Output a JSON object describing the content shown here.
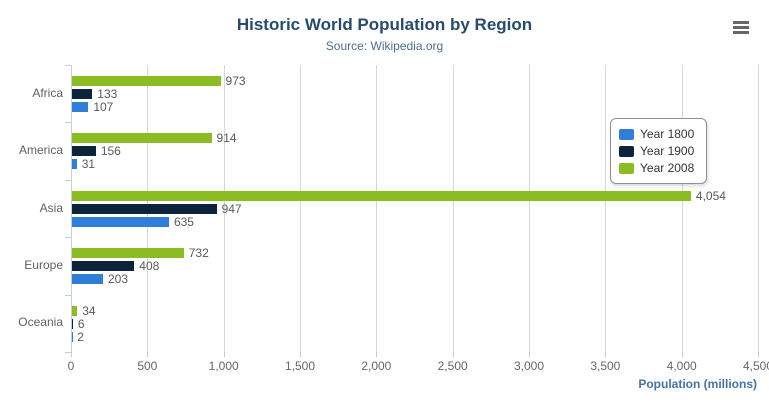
{
  "chart_data": {
    "type": "bar",
    "title": "Historic World Population by Region",
    "subtitle": "Source: Wikipedia.org",
    "categories": [
      "Africa",
      "America",
      "Asia",
      "Europe",
      "Oceania"
    ],
    "series": [
      {
        "name": "Year 1800",
        "color": "#2f7ed8",
        "values": [
          107,
          31,
          635,
          203,
          2
        ]
      },
      {
        "name": "Year 1900",
        "color": "#0d233a",
        "values": [
          133,
          156,
          947,
          408,
          6
        ]
      },
      {
        "name": "Year 2008",
        "color": "#8bbc21",
        "values": [
          973,
          914,
          4054,
          732,
          34
        ]
      }
    ],
    "data_labels": [
      [
        "107",
        "31",
        "635",
        "203",
        "2"
      ],
      [
        "133",
        "156",
        "947",
        "408",
        "6"
      ],
      [
        "973",
        "914",
        "4,054",
        "732",
        "34"
      ]
    ],
    "xlabel": "Population (millions)",
    "ylabel": "",
    "xlim": [
      0,
      4500
    ],
    "ticks": [
      0,
      500,
      1000,
      1500,
      2000,
      2500,
      3000,
      3500,
      4000,
      4500
    ],
    "tick_labels": [
      "0",
      "500",
      "1,000",
      "1,500",
      "2,000",
      "2,500",
      "3,000",
      "3,500",
      "4,000",
      "4,500"
    ],
    "grid": true,
    "legend_position": "right-overlay",
    "bar_display_order_top_to_bottom": [
      "Year 2008",
      "Year 1900",
      "Year 1800"
    ]
  },
  "icons": {
    "context_menu": "hamburger-menu-icon"
  },
  "colors": {
    "title": "#274b6d",
    "subtitle": "#4d6d8f",
    "axis_title": "#4572a7",
    "axis_line": "#c0d0e0",
    "gridline": "#d6d6d6",
    "tick_label": "#666666",
    "data_label": "#595959",
    "background": "#ffffff"
  }
}
